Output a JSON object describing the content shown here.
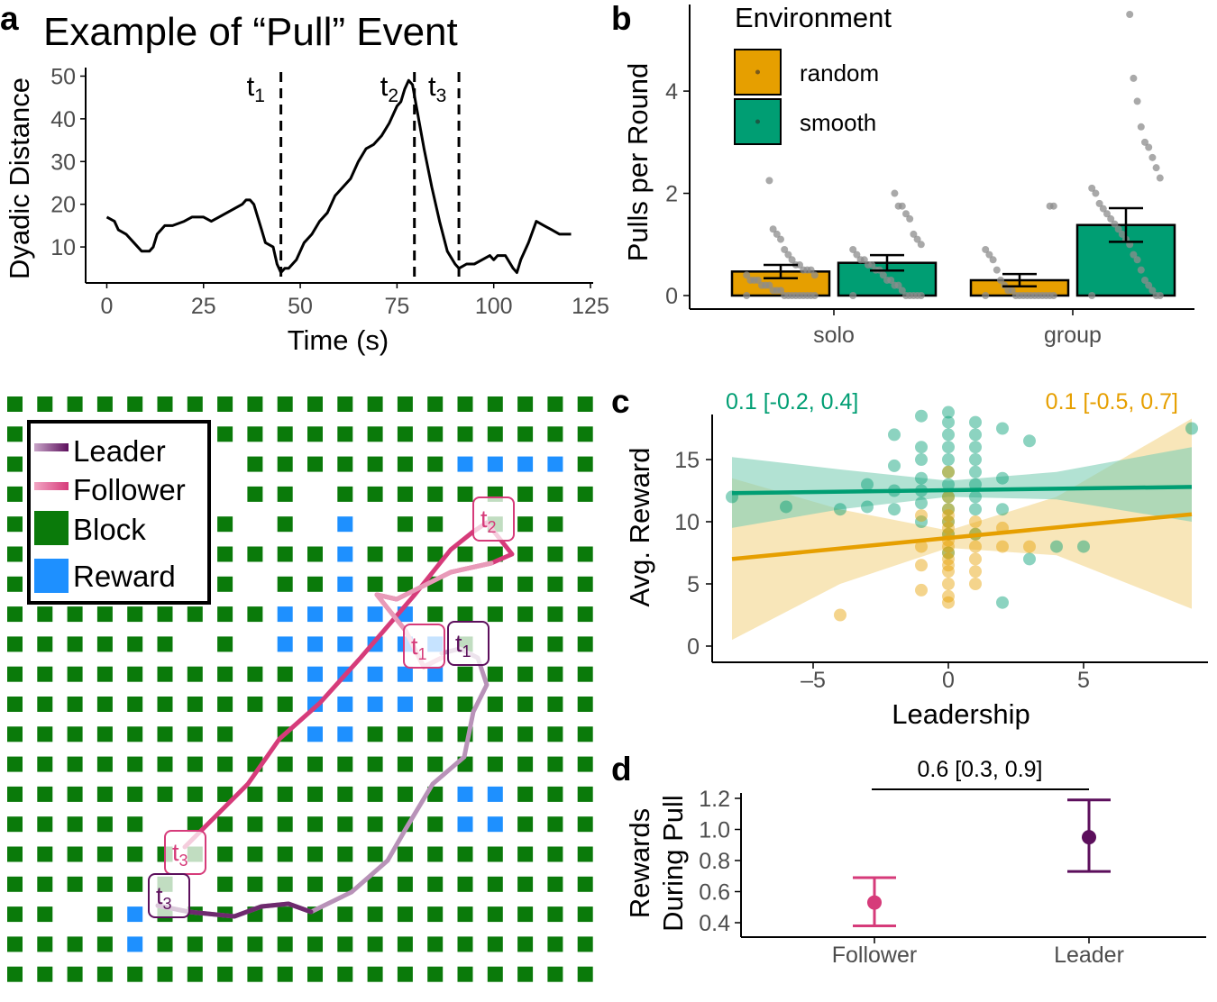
{
  "colors": {
    "random": "#e69f00",
    "smooth": "#009e73",
    "leader": "#5c0f5c",
    "follower": "#d63b7a",
    "block": "#0a7a0a",
    "reward": "#1e90ff",
    "ci_random": "#f4d58a",
    "ci_smooth": "#7fcfb5"
  },
  "chart_data": [
    {
      "id": "a",
      "type": "line",
      "panel_label": "a",
      "title": "Example of “Pull” Event",
      "xlabel": "Time (s)",
      "ylabel": "Dyadic Distance",
      "xlim": [
        -5,
        125
      ],
      "ylim": [
        2,
        52
      ],
      "xticks": [
        0,
        25,
        50,
        75,
        100,
        125
      ],
      "yticks": [
        10,
        20,
        30,
        40,
        50
      ],
      "events": [
        {
          "sym": "t",
          "sub": "1",
          "x": 45
        },
        {
          "sym": "t",
          "sub": "2",
          "x": 79.5
        },
        {
          "sym": "t",
          "sub": "3",
          "x": 91
        }
      ],
      "x": [
        0,
        2,
        3,
        5,
        7,
        9,
        11,
        12,
        13,
        14,
        15,
        17,
        20,
        22,
        25,
        27,
        29,
        31,
        33,
        35,
        36,
        37,
        38,
        39,
        40,
        41,
        43,
        44,
        45,
        46,
        47,
        49,
        50,
        51,
        53,
        55,
        57,
        59,
        61,
        63,
        65,
        67,
        69,
        71,
        73,
        75,
        76,
        77,
        78,
        79,
        80,
        82,
        84,
        86,
        88,
        90,
        91,
        93,
        95,
        97,
        99,
        100,
        101,
        103,
        105,
        106,
        107,
        109,
        111,
        113,
        115,
        117,
        120
      ],
      "y": [
        17,
        16,
        14,
        13,
        11,
        9,
        9,
        10,
        13,
        14,
        15,
        15,
        16,
        17,
        17,
        16,
        17,
        18,
        19,
        20,
        21,
        21,
        20,
        17,
        14,
        11,
        10,
        6,
        4,
        5,
        5,
        7,
        9,
        11,
        13,
        16,
        18,
        22,
        24,
        26,
        30,
        33,
        34,
        36,
        39,
        43,
        44,
        47,
        49,
        48,
        43,
        33,
        24,
        16,
        9,
        6,
        5,
        6,
        6,
        7,
        8,
        7,
        8,
        8,
        5,
        4,
        7,
        11,
        16,
        15,
        14,
        13,
        13
      ]
    },
    {
      "id": "b",
      "type": "bar",
      "panel_label": "b",
      "ylabel": "Pulls per Round",
      "categories": [
        "solo",
        "group"
      ],
      "ylim": [
        0,
        5.6
      ],
      "yticks": [
        0,
        2,
        4
      ],
      "legend_title": "Environment",
      "legend_position": "top-left",
      "series": [
        {
          "name": "random",
          "values": [
            0.47,
            0.3
          ],
          "se": [
            0.13,
            0.12
          ]
        },
        {
          "name": "smooth",
          "values": [
            0.64,
            1.38
          ],
          "se": [
            0.15,
            0.33
          ]
        }
      ],
      "points": {
        "solo_random": [
          0.0,
          0.0,
          0.0,
          0.0,
          0.0,
          0.0,
          0.0,
          0.0,
          0.0,
          0.0,
          0.1,
          0.1,
          0.1,
          0.2,
          0.2,
          0.2,
          0.3,
          0.3,
          0.3,
          0.4,
          0.4,
          0.5,
          0.5,
          0.5,
          0.6,
          0.6,
          0.7,
          0.8,
          0.9,
          1.1,
          1.2,
          1.3,
          2.25
        ],
        "solo_smooth": [
          0.0,
          0.0,
          0.0,
          0.0,
          0.0,
          0.0,
          0.1,
          0.2,
          0.2,
          0.3,
          0.3,
          0.4,
          0.5,
          0.5,
          0.6,
          0.6,
          0.7,
          0.7,
          0.8,
          0.9,
          1.0,
          1.1,
          1.2,
          1.5,
          1.6,
          1.75,
          1.75,
          2.0
        ],
        "group_random": [
          0.0,
          0.0,
          0.0,
          0.0,
          0.0,
          0.0,
          0.0,
          0.0,
          0.0,
          0.0,
          0.0,
          0.0,
          0.1,
          0.1,
          0.2,
          0.3,
          0.5,
          0.7,
          0.8,
          0.9,
          1.75,
          1.75
        ],
        "group_smooth": [
          0.0,
          0.0,
          0.0,
          0.1,
          0.2,
          0.3,
          0.5,
          0.7,
          0.8,
          1.0,
          1.1,
          1.2,
          1.3,
          1.4,
          1.5,
          1.6,
          1.7,
          1.8,
          2.0,
          2.1,
          2.3,
          2.5,
          2.7,
          2.9,
          3.0,
          3.3,
          3.8,
          4.25,
          5.5
        ]
      }
    },
    {
      "id": "c",
      "type": "scatter",
      "panel_label": "c",
      "xlabel": "Leadership",
      "ylabel": "Avg. Reward",
      "xlim": [
        -8.3,
        9.2
      ],
      "ylim": [
        -0.5,
        19.5
      ],
      "xticks": [
        -5,
        0,
        5
      ],
      "xtick_labels": [
        "–5",
        "0",
        "5"
      ],
      "yticks": [
        0,
        5,
        10,
        15
      ],
      "annotations": [
        {
          "text": "0.1 [-0.2, 0.4]",
          "series": "smooth"
        },
        {
          "text": "0.1 [-0.5, 0.7]",
          "series": "random"
        }
      ],
      "series": [
        {
          "name": "smooth",
          "fit": {
            "x": [
              -8,
              9
            ],
            "y": [
              12.3,
              12.8
            ]
          },
          "ci": {
            "x": [
              -8,
              -4,
              0,
              4,
              9
            ],
            "lower": [
              9.5,
              11.0,
              12.0,
              11.8,
              10.0
            ],
            "upper": [
              15.2,
              14.2,
              13.3,
              14.0,
              16.0
            ]
          },
          "points": [
            [
              -8,
              12
            ],
            [
              -6,
              11.2
            ],
            [
              -4,
              11
            ],
            [
              -3,
              11.2
            ],
            [
              -3,
              13
            ],
            [
              -2,
              11
            ],
            [
              -2,
              12.5
            ],
            [
              -2,
              14.5
            ],
            [
              -2,
              17
            ],
            [
              -1,
              10
            ],
            [
              -1,
              11.5
            ],
            [
              -1,
              12.5
            ],
            [
              -1,
              13.5
            ],
            [
              -1,
              15
            ],
            [
              -1,
              16
            ],
            [
              -1,
              18.5
            ],
            [
              0,
              7.5
            ],
            [
              0,
              9
            ],
            [
              0,
              10
            ],
            [
              0,
              11
            ],
            [
              0,
              12
            ],
            [
              0,
              13
            ],
            [
              0,
              14
            ],
            [
              0,
              15
            ],
            [
              0,
              16
            ],
            [
              0,
              17
            ],
            [
              0,
              18
            ],
            [
              0,
              18.8
            ],
            [
              1,
              9
            ],
            [
              1,
              11
            ],
            [
              1,
              12
            ],
            [
              1,
              13
            ],
            [
              1,
              14
            ],
            [
              1,
              15
            ],
            [
              1,
              16
            ],
            [
              1,
              17
            ],
            [
              1,
              18
            ],
            [
              2,
              3.5
            ],
            [
              2,
              11
            ],
            [
              2,
              13.5
            ],
            [
              2,
              17.5
            ],
            [
              3,
              7
            ],
            [
              3,
              16.5
            ],
            [
              4,
              8
            ],
            [
              5,
              8
            ],
            [
              9,
              17.5
            ]
          ]
        },
        {
          "name": "random",
          "fit": {
            "x": [
              -8,
              9
            ],
            "y": [
              7.0,
              10.6
            ]
          },
          "ci": {
            "x": [
              -8,
              -4,
              0,
              4,
              9
            ],
            "lower": [
              0.5,
              5.0,
              7.9,
              7.3,
              3.0
            ],
            "upper": [
              13.5,
              11.0,
              9.3,
              12.0,
              18.3
            ]
          },
          "points": [
            [
              -4,
              2.5
            ],
            [
              -1,
              4.5
            ],
            [
              -1,
              6.5
            ],
            [
              -1,
              8
            ],
            [
              -1,
              10.5
            ],
            [
              0,
              3.5
            ],
            [
              0,
              4
            ],
            [
              0,
              5
            ],
            [
              0,
              6
            ],
            [
              0,
              6.5
            ],
            [
              0,
              7
            ],
            [
              0,
              7.5
            ],
            [
              0,
              8
            ],
            [
              0,
              8.5
            ],
            [
              0,
              9
            ],
            [
              0,
              9.5
            ],
            [
              0,
              10
            ],
            [
              0,
              10.5
            ],
            [
              0,
              11
            ],
            [
              0,
              12
            ],
            [
              0,
              14
            ],
            [
              1,
              5
            ],
            [
              1,
              6
            ],
            [
              1,
              7
            ],
            [
              1,
              8
            ],
            [
              1,
              9
            ],
            [
              1,
              10
            ],
            [
              2,
              8
            ],
            [
              2,
              9.5
            ],
            [
              3,
              8
            ]
          ]
        }
      ]
    },
    {
      "id": "d",
      "type": "scatter",
      "panel_label": "d",
      "ylabel_lines": [
        "Rewards",
        "During Pull"
      ],
      "categories": [
        "Follower",
        "Leader"
      ],
      "ylim": [
        0.33,
        1.25
      ],
      "yticks": [
        0.4,
        0.6,
        0.8,
        1.0,
        1.2
      ],
      "ytick_labels": [
        "0.4",
        "0.6",
        "0.8",
        "1.0",
        "1.2"
      ],
      "annotation": "0.6 [0.3, 0.9]",
      "values": [
        0.53,
        0.95
      ],
      "lower": [
        0.38,
        0.73
      ],
      "upper": [
        0.69,
        1.19
      ]
    },
    {
      "id": "grid",
      "type": "map",
      "legend": {
        "leader": "Leader",
        "follower": "Follower",
        "block": "Block",
        "reward": "Reward"
      },
      "cols": 20,
      "rows": 20,
      "blocks": [
        "BBBBBBBBBBBBBBBBBBBB",
        "BBBBBBBBBBBBBBBBBBBB",
        "BBBBBBB.BBBBBBBRRRRB",
        "BBB.BBB.BB.BBBBBBBBB",
        "BBBBBBBB.B.R.BB.BBB.",
        "BBBBBBBBBBBRBBBBBBBB",
        "BBBBBBBB.BBRBBBBBBBB",
        "BBBBBBBBBRRRRRBBBBBB",
        "BBBBBB.B.RRRRRRB.BBB",
        "BBBBBBBBBBRRRRRBBBBB",
        "BBBBBBBBBBRRRRBBBBBB",
        "BBBBBBBB.BRRBBBBBBBB",
        "BBBBBBBBBBBBBBBBBBBB",
        "BBBBBBBBBBBBBBBRRBBB",
        "BBBBB.BBBBBBBBBRRBBB",
        "BBBBBBBBBBBBBBBBBBBB",
        "BBBBBB.BBBBBBBBBBBBB",
        "BB.BRBBBBBBBBBBBBBBB",
        "BBBBRBBBBBBBBBBBBBBB",
        "BBBBBBBBBBBBBBBBBBBB"
      ],
      "leader_path": [
        [
          175,
          1005
        ],
        [
          210,
          1012
        ],
        [
          260,
          1017
        ],
        [
          290,
          1006
        ],
        [
          320,
          1003
        ],
        [
          345,
          1012
        ],
        [
          390,
          990
        ],
        [
          430,
          955
        ],
        [
          450,
          920
        ],
        [
          480,
          870
        ],
        [
          515,
          840
        ],
        [
          525,
          790
        ],
        [
          540,
          760
        ],
        [
          530,
          730
        ],
        [
          510,
          720
        ],
        [
          490,
          725
        ]
      ],
      "follower_path": [
        [
          205,
          940
        ],
        [
          245,
          900
        ],
        [
          275,
          870
        ],
        [
          310,
          820
        ],
        [
          355,
          780
        ],
        [
          400,
          730
        ],
        [
          460,
          660
        ],
        [
          500,
          610
        ],
        [
          525,
          590
        ],
        [
          540,
          580
        ],
        [
          568,
          615
        ],
        [
          545,
          625
        ],
        [
          500,
          635
        ],
        [
          440,
          665
        ],
        [
          418,
          660
        ],
        [
          450,
          700
        ],
        [
          470,
          740
        ],
        [
          490,
          730
        ]
      ],
      "labels": [
        {
          "sym": "t",
          "sub": "2",
          "who": "follower"
        },
        {
          "sym": "t",
          "sub": "1",
          "who": "follower"
        },
        {
          "sym": "t",
          "sub": "1",
          "who": "leader"
        },
        {
          "sym": "t",
          "sub": "3",
          "who": "follower"
        },
        {
          "sym": "t",
          "sub": "3",
          "who": "leader"
        }
      ]
    }
  ]
}
